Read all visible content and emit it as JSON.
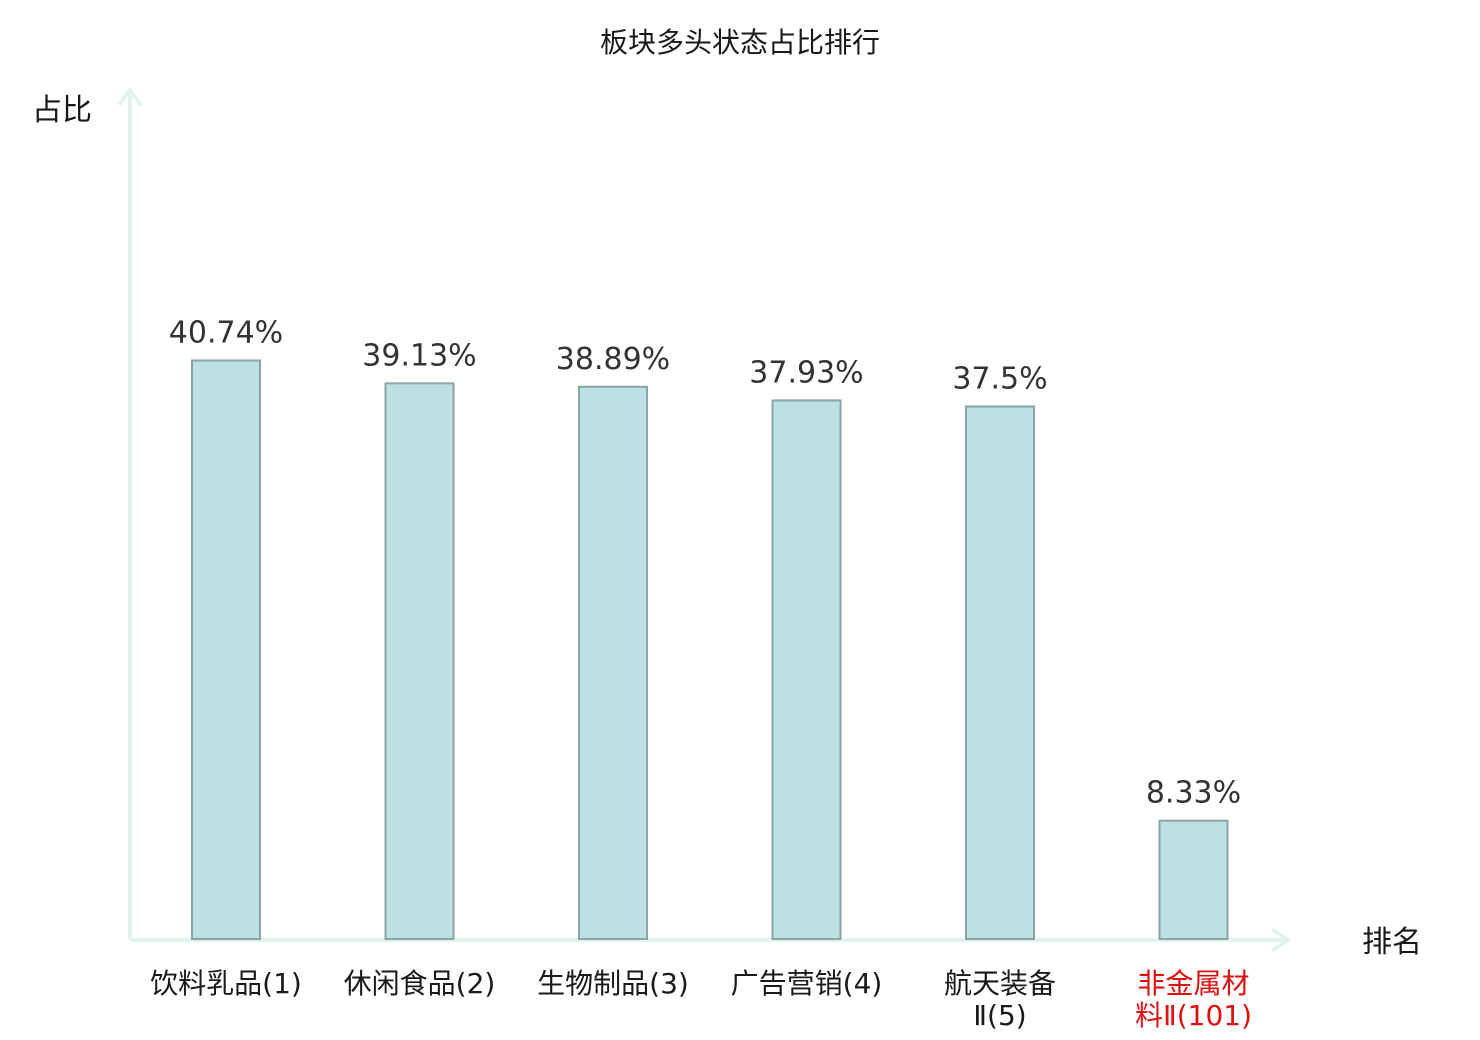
{
  "chart_data": {
    "type": "bar",
    "title": "板块多头状态占比排行",
    "ylabel": "占比",
    "xlabel": "排名",
    "categories": [
      {
        "label_lines": [
          "饮料乳品(1)"
        ],
        "value": 40.74,
        "value_label": "40.74%",
        "highlight": false
      },
      {
        "label_lines": [
          "休闲食品(2)"
        ],
        "value": 39.13,
        "value_label": "39.13%",
        "highlight": false
      },
      {
        "label_lines": [
          "生物制品(3)"
        ],
        "value": 38.89,
        "value_label": "38.89%",
        "highlight": false
      },
      {
        "label_lines": [
          "广告营销(4)"
        ],
        "value": 37.93,
        "value_label": "37.93%",
        "highlight": false
      },
      {
        "label_lines": [
          "航天装备",
          "Ⅱ(5)"
        ],
        "value": 37.5,
        "value_label": "37.5%",
        "highlight": false
      },
      {
        "label_lines": [
          "非金属材",
          "料Ⅱ(101)"
        ],
        "value": 8.33,
        "value_label": "8.33%",
        "highlight": true
      }
    ],
    "ylim": [
      0,
      50
    ],
    "grid": false,
    "legend": "none"
  },
  "colors": {
    "bar_fill": "#bde0e3",
    "bar_stroke": "#8aa5a8",
    "axis": "#e0f3f1",
    "highlight_text": "#e01010",
    "text": "#1a1a1a"
  }
}
